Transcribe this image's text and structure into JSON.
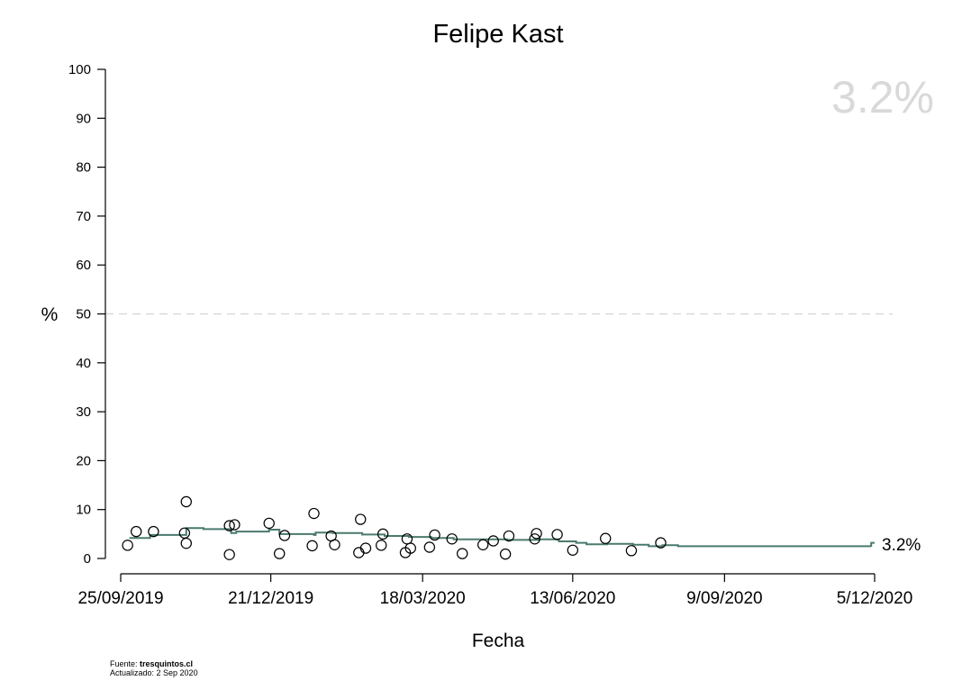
{
  "chart_data": {
    "type": "scatter",
    "title": "Felipe Kast",
    "xlabel": "Fecha",
    "ylabel": "%",
    "ylim": [
      0,
      100
    ],
    "yticks": [
      0,
      10,
      20,
      30,
      40,
      50,
      60,
      70,
      80,
      90,
      100
    ],
    "xlim": [
      "2019-09-25",
      "2020-12-05"
    ],
    "xticks": [
      {
        "date": "2019-09-25",
        "label": "25/09/2019"
      },
      {
        "date": "2019-12-21",
        "label": "21/12/2019"
      },
      {
        "date": "2020-03-18",
        "label": "18/03/2020"
      },
      {
        "date": "2020-06-13",
        "label": "13/06/2020"
      },
      {
        "date": "2020-09-09",
        "label": "9/09/2020"
      },
      {
        "date": "2020-12-05",
        "label": "5/12/2020"
      }
    ],
    "reference_line": {
      "y": 50,
      "style": "dashed"
    },
    "headline_value": "3.2%",
    "end_label": "3.2%",
    "grid": false,
    "points": [
      {
        "date": "2019-09-29",
        "y": 2.7
      },
      {
        "date": "2019-10-04",
        "y": 5.5
      },
      {
        "date": "2019-10-14",
        "y": 5.5
      },
      {
        "date": "2019-11-01",
        "y": 5.2
      },
      {
        "date": "2019-11-02",
        "y": 3.1
      },
      {
        "date": "2019-11-02",
        "y": 11.6
      },
      {
        "date": "2019-11-27",
        "y": 6.7
      },
      {
        "date": "2019-11-27",
        "y": 0.8
      },
      {
        "date": "2019-11-30",
        "y": 6.9
      },
      {
        "date": "2019-12-20",
        "y": 7.2
      },
      {
        "date": "2019-12-26",
        "y": 1.0
      },
      {
        "date": "2019-12-29",
        "y": 4.7
      },
      {
        "date": "2020-01-14",
        "y": 2.6
      },
      {
        "date": "2020-01-15",
        "y": 9.2
      },
      {
        "date": "2020-01-25",
        "y": 4.6
      },
      {
        "date": "2020-01-27",
        "y": 2.8
      },
      {
        "date": "2020-02-10",
        "y": 1.2
      },
      {
        "date": "2020-02-11",
        "y": 8.0
      },
      {
        "date": "2020-02-14",
        "y": 2.1
      },
      {
        "date": "2020-02-23",
        "y": 2.7
      },
      {
        "date": "2020-02-24",
        "y": 5.0
      },
      {
        "date": "2020-03-08",
        "y": 1.2
      },
      {
        "date": "2020-03-09",
        "y": 4.0
      },
      {
        "date": "2020-03-11",
        "y": 2.1
      },
      {
        "date": "2020-03-22",
        "y": 2.3
      },
      {
        "date": "2020-03-25",
        "y": 4.8
      },
      {
        "date": "2020-04-04",
        "y": 4.0
      },
      {
        "date": "2020-04-10",
        "y": 1.0
      },
      {
        "date": "2020-04-22",
        "y": 2.8
      },
      {
        "date": "2020-04-28",
        "y": 3.6
      },
      {
        "date": "2020-05-05",
        "y": 0.9
      },
      {
        "date": "2020-05-07",
        "y": 4.6
      },
      {
        "date": "2020-05-22",
        "y": 4.0
      },
      {
        "date": "2020-05-23",
        "y": 5.1
      },
      {
        "date": "2020-06-04",
        "y": 4.9
      },
      {
        "date": "2020-06-13",
        "y": 1.7
      },
      {
        "date": "2020-07-02",
        "y": 4.1
      },
      {
        "date": "2020-07-17",
        "y": 1.6
      },
      {
        "date": "2020-08-03",
        "y": 3.2
      }
    ],
    "trend": [
      {
        "date": "2019-09-30",
        "y": 4.2
      },
      {
        "date": "2019-10-12",
        "y": 4.8
      },
      {
        "date": "2019-11-02",
        "y": 6.2
      },
      {
        "date": "2019-11-12",
        "y": 6.0
      },
      {
        "date": "2019-11-28",
        "y": 5.2
      },
      {
        "date": "2019-12-01",
        "y": 5.5
      },
      {
        "date": "2019-12-20",
        "y": 5.9
      },
      {
        "date": "2019-12-26",
        "y": 5.0
      },
      {
        "date": "2020-01-15",
        "y": 4.8
      },
      {
        "date": "2020-01-16",
        "y": 5.3
      },
      {
        "date": "2020-01-26",
        "y": 5.2
      },
      {
        "date": "2020-02-12",
        "y": 4.7
      },
      {
        "date": "2020-02-12",
        "y": 4.9
      },
      {
        "date": "2020-02-25",
        "y": 4.6
      },
      {
        "date": "2020-03-10",
        "y": 4.4
      },
      {
        "date": "2020-03-23",
        "y": 4.2
      },
      {
        "date": "2020-04-05",
        "y": 3.9
      },
      {
        "date": "2020-05-06",
        "y": 3.8
      },
      {
        "date": "2020-05-24",
        "y": 3.9
      },
      {
        "date": "2020-06-05",
        "y": 3.5
      },
      {
        "date": "2020-06-15",
        "y": 3.2
      },
      {
        "date": "2020-06-21",
        "y": 2.9
      },
      {
        "date": "2020-07-03",
        "y": 3.0
      },
      {
        "date": "2020-07-18",
        "y": 2.8
      },
      {
        "date": "2020-07-27",
        "y": 2.5
      },
      {
        "date": "2020-08-04",
        "y": 2.7
      },
      {
        "date": "2020-08-13",
        "y": 2.5
      },
      {
        "date": "2020-12-03",
        "y": 2.4
      },
      {
        "date": "2020-12-03",
        "y": 3.2
      },
      {
        "date": "2020-12-05",
        "y": 3.2
      }
    ]
  },
  "footer": {
    "source_prefix": "Fuente: ",
    "source_name": "tresquintos.cl",
    "updated": "Actualizado: 2 Sep 2020"
  }
}
